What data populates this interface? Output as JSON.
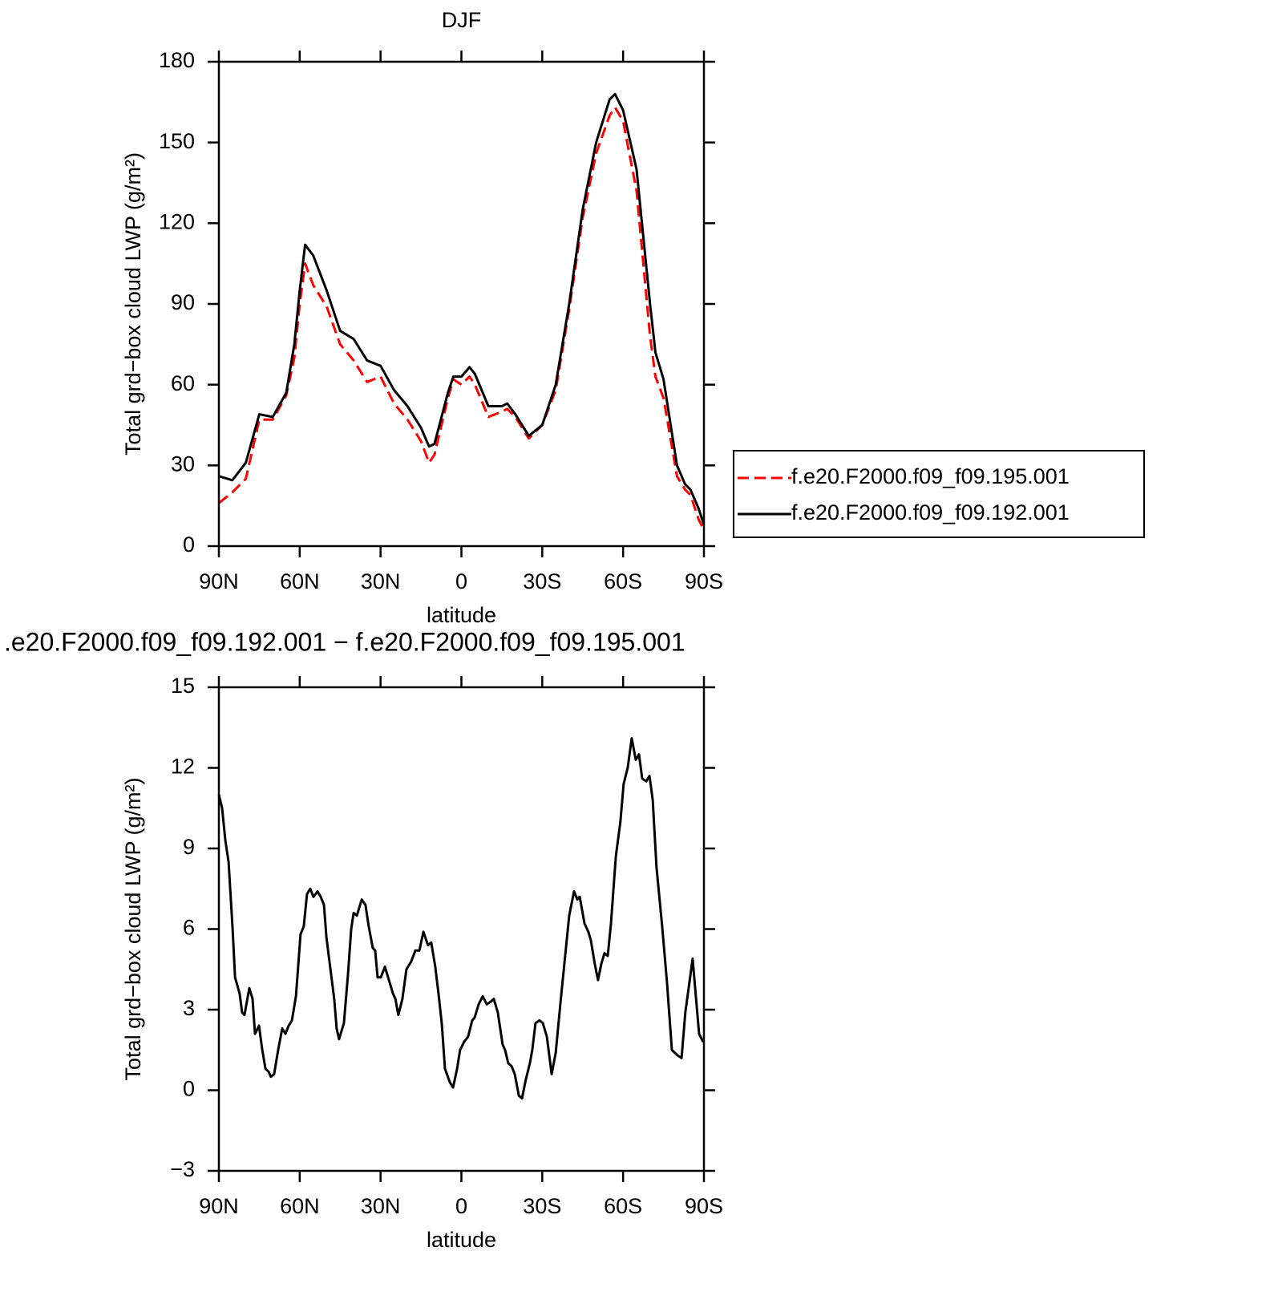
{
  "chart_data": [
    {
      "type": "line",
      "title": "DJF",
      "xlabel": "latitude",
      "ylabel": "Total grd−box cloud LWP (g/m²)",
      "x": [
        90,
        85,
        80,
        75,
        70,
        65,
        62,
        60,
        58,
        55,
        50,
        45,
        40,
        35,
        30,
        25,
        20,
        15,
        12,
        10,
        5,
        3,
        0,
        -3,
        -5,
        -10,
        -15,
        -17,
        -20,
        -25,
        -30,
        -35,
        -40,
        -45,
        -50,
        -55,
        -57,
        -60,
        -65,
        -70,
        -72,
        -75,
        -80,
        -83,
        -85,
        -88,
        -90
      ],
      "series": [
        {
          "name": "f.e20.F2000.f09_f09.195.001",
          "color": "#ff0000",
          "linestyle": "dashed",
          "values": [
            16,
            20,
            25,
            47,
            47,
            56,
            70,
            90,
            105,
            97,
            89,
            75,
            69,
            61,
            63,
            53,
            47,
            39,
            31,
            34,
            55,
            62,
            60,
            63,
            60,
            48,
            50,
            51,
            48,
            40,
            45,
            58,
            88,
            122,
            146,
            160,
            163,
            158,
            132,
            78,
            63,
            55,
            26,
            21,
            19,
            10,
            6
          ]
        },
        {
          "name": "f.e20.F2000.f09_f09.192.001",
          "color": "#000000",
          "linestyle": "solid",
          "values": [
            26,
            24.5,
            31,
            49,
            48,
            57,
            75,
            95,
            112,
            108,
            95,
            80,
            77,
            69,
            67,
            58,
            52,
            44,
            37,
            38,
            57,
            63,
            63,
            66.5,
            64,
            52,
            52,
            53,
            49,
            41,
            45,
            60,
            90,
            125,
            150,
            166,
            168,
            162,
            140,
            90,
            72,
            62,
            30,
            23,
            21,
            14,
            8
          ]
        }
      ],
      "xlim": [
        90,
        -90
      ],
      "xticks": [
        {
          "value": 90,
          "label": "90N"
        },
        {
          "value": 60,
          "label": "60N"
        },
        {
          "value": 30,
          "label": "30N"
        },
        0,
        {
          "value": -30,
          "label": "30S"
        },
        {
          "value": -60,
          "label": "60S"
        },
        {
          "value": -90,
          "label": "90S"
        }
      ],
      "ylim": [
        0,
        180
      ],
      "yticks": [
        0,
        30,
        60,
        90,
        120,
        150,
        180
      ],
      "legend": "right"
    },
    {
      "type": "line",
      "title": ".e20.F2000.f09_f09.192.001 − f.e20.F2000.f09_f09.195.001",
      "xlabel": "latitude",
      "ylabel": "Total grd−box cloud LWP (g/m²)",
      "x": [
        90,
        88.8,
        87.6,
        86.4,
        84.9,
        84.0,
        82.3,
        81.4,
        80.5,
        78.7,
        77.5,
        76.6,
        75.1,
        73.9,
        72.7,
        71.6,
        70.7,
        69.5,
        68.0,
        66.5,
        65.3,
        64.1,
        62.9,
        61.4,
        59.7,
        58.5,
        57.3,
        56.1,
        54.9,
        53.4,
        52.2,
        51.0,
        50.1,
        48.6,
        47.2,
        46.3,
        45.4,
        43.6,
        42.1,
        40.9,
        40.0,
        38.8,
        37.0,
        35.6,
        34.4,
        32.9,
        32.0,
        31.1,
        29.9,
        28.4,
        27.2,
        25.4,
        24.5,
        23.4,
        21.9,
        20.4,
        18.6,
        17.1,
        15.6,
        14.1,
        12.4,
        11.2,
        9.7,
        8.5,
        7.3,
        6.1,
        4.3,
        3.1,
        1.6,
        0.5,
        -1.0,
        -2.5,
        -4.0,
        -4.9,
        -6.4,
        -7.9,
        -9.4,
        -10.9,
        -12.0,
        -13.5,
        -15.3,
        -16.2,
        -17.4,
        -18.6,
        -19.8,
        -21.3,
        -22.5,
        -23.9,
        -25.4,
        -26.3,
        -27.5,
        -29.0,
        -30.2,
        -31.7,
        -33.5,
        -35.0,
        -37.0,
        -38.5,
        -40.0,
        -41.8,
        -43.0,
        -43.9,
        -45.7,
        -47.1,
        -48.0,
        -49.5,
        -50.7,
        -51.9,
        -53.1,
        -54.3,
        -55.5,
        -57.3,
        -59.0,
        -60.2,
        -61.7,
        -63.2,
        -64.7,
        -65.9,
        -67.1,
        -68.6,
        -69.8,
        -71.0,
        -72.4,
        -74.5,
        -76.3,
        -78.1,
        -80.2,
        -81.7,
        -83.1,
        -84.6,
        -85.8,
        -87.0,
        -88.2,
        -89.7
      ],
      "color": "#000000",
      "values": [
        11,
        10.5,
        9.3,
        8.5,
        6,
        4.2,
        3.6,
        2.9,
        2.8,
        3.8,
        3.4,
        2.1,
        2.4,
        1.5,
        0.8,
        0.7,
        0.5,
        0.6,
        1.5,
        2.3,
        2.1,
        2.4,
        2.6,
        3.5,
        5.8,
        6.1,
        7.3,
        7.5,
        7.2,
        7.4,
        7.2,
        6.9,
        5.7,
        4.5,
        3.4,
        2.3,
        1.9,
        2.5,
        4.3,
        6.0,
        6.6,
        6.5,
        7.1,
        6.9,
        6.1,
        5.3,
        5.2,
        4.2,
        4.2,
        4.6,
        4.2,
        3.6,
        3.4,
        2.8,
        3.4,
        4.5,
        4.8,
        5.2,
        5.2,
        5.9,
        5.4,
        5.5,
        4.6,
        3.6,
        2.5,
        0.8,
        0.3,
        0.1,
        0.8,
        1.5,
        1.8,
        2.0,
        2.6,
        2.7,
        3.2,
        3.5,
        3.2,
        3.3,
        3.4,
        2.9,
        1.7,
        1.5,
        1.0,
        0.9,
        0.6,
        -0.2,
        -0.3,
        0.4,
        1.0,
        1.5,
        2.5,
        2.6,
        2.5,
        2.0,
        0.6,
        1.4,
        3.5,
        5.0,
        6.5,
        7.4,
        7.1,
        7.2,
        6.2,
        5.9,
        5.6,
        4.7,
        4.1,
        4.7,
        5.1,
        5.0,
        6.2,
        8.7,
        10.0,
        11.4,
        12.0,
        13.1,
        12.3,
        12.5,
        11.6,
        11.5,
        11.7,
        10.8,
        8.3,
        6.1,
        4.0,
        1.5,
        1.3,
        1.2,
        2.9,
        4.0,
        4.9,
        3.5,
        2.1,
        1.8
      ],
      "xlim": [
        90,
        -90
      ],
      "xticks": [
        {
          "value": 90,
          "label": "90N"
        },
        {
          "value": 60,
          "label": "60N"
        },
        {
          "value": 30,
          "label": "30N"
        },
        0,
        {
          "value": -30,
          "label": "30S"
        },
        {
          "value": -60,
          "label": "60S"
        },
        {
          "value": -90,
          "label": "90S"
        }
      ],
      "ylim": [
        -3,
        15
      ],
      "yticks": [
        {
          "value": -3,
          "label": "−3"
        },
        0,
        3,
        6,
        9,
        12,
        15
      ]
    }
  ]
}
